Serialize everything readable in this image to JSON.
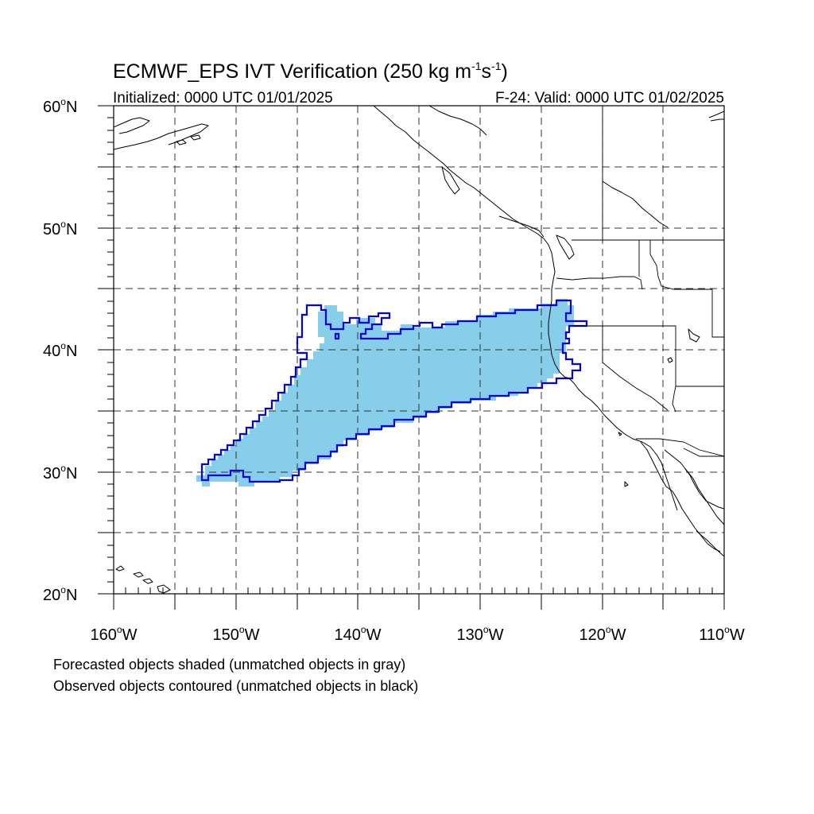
{
  "title": {
    "main": "ECMWF_EPS IVT Verification (250 kg m",
    "sup1": "-1",
    "mid": "s",
    "sup2": "-1",
    "end": ")"
  },
  "subtitle": {
    "left": "Initialized: 0000 UTC 01/01/2025",
    "right": "F-24: Valid: 0000 UTC 01/02/2025"
  },
  "axes": {
    "lon_range": [
      -160,
      -110
    ],
    "lat_range": [
      20,
      60
    ],
    "x_ticks": [
      {
        "label": "160",
        "suffix": "W"
      },
      {
        "label": "150",
        "suffix": "W"
      },
      {
        "label": "140",
        "suffix": "W"
      },
      {
        "label": "130",
        "suffix": "W"
      },
      {
        "label": "120",
        "suffix": "W"
      },
      {
        "label": "110",
        "suffix": "W"
      }
    ],
    "y_ticks": [
      {
        "label": "60",
        "suffix": "N"
      },
      {
        "label": "50",
        "suffix": "N"
      },
      {
        "label": "40",
        "suffix": "N"
      },
      {
        "label": "30",
        "suffix": "N"
      },
      {
        "label": "20",
        "suffix": "N"
      }
    ],
    "degree_symbol": "o",
    "grid": "dashed every 5 degrees"
  },
  "colors": {
    "forecast_shading": "#87ceeb",
    "observed_contour": "#0000ee",
    "coastline": "#000000"
  },
  "objects": {
    "forecast": {
      "type": "shaded",
      "matched": true,
      "lon_range": [
        -153,
        -122
      ],
      "lat_range": [
        29,
        43.5
      ]
    },
    "observed": {
      "type": "contour",
      "matched": true,
      "lon_range": [
        -153,
        -121
      ],
      "lat_range": [
        29.2,
        44.3
      ]
    }
  },
  "legend_notes": [
    "Forecasted objects shaded (unmatched objects in gray)",
    "Observed objects contoured (unmatched objects in black)"
  ]
}
